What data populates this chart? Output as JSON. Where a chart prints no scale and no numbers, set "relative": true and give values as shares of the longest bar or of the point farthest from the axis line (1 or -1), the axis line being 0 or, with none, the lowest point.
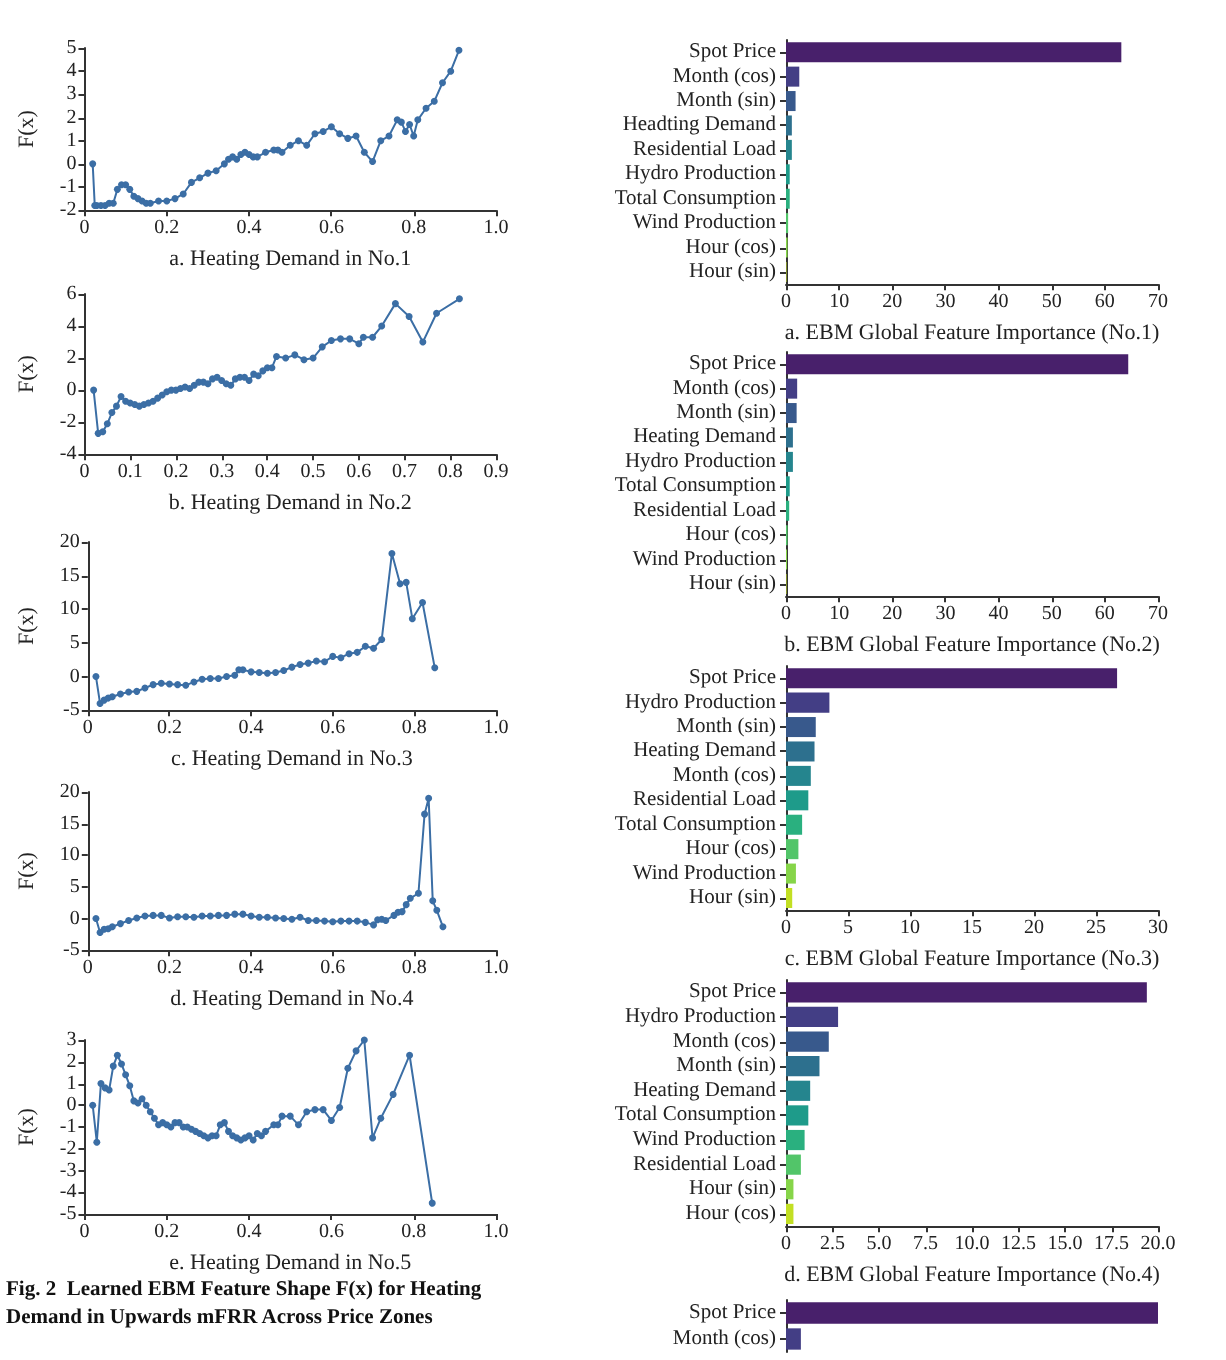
{
  "chart_data": [
    {
      "type": "line",
      "xlabel": "a. Heating Demand in No.1",
      "ylabel": "F(x)",
      "marker": "circle",
      "xlim": [
        0,
        1
      ],
      "ylim": [
        -2,
        5
      ],
      "xticks": [
        0,
        0.2,
        0.4,
        0.6,
        0.8,
        {
          "value": 1,
          "label": "1.0"
        }
      ],
      "yticks": [
        -2,
        -1,
        0,
        1,
        2,
        3,
        4,
        5
      ],
      "x": [
        0.02,
        0.025,
        0.03,
        0.04,
        0.05,
        0.06,
        0.07,
        0.08,
        0.09,
        0.1,
        0.11,
        0.12,
        0.13,
        0.14,
        0.15,
        0.16,
        0.18,
        0.2,
        0.22,
        0.24,
        0.26,
        0.28,
        0.3,
        0.32,
        0.34,
        0.35,
        0.36,
        0.37,
        0.38,
        0.39,
        0.4,
        0.41,
        0.42,
        0.44,
        0.46,
        0.47,
        0.48,
        0.5,
        0.52,
        0.54,
        0.56,
        0.58,
        0.6,
        0.62,
        0.64,
        0.66,
        0.68,
        0.7,
        0.72,
        0.74,
        0.76,
        0.77,
        0.78,
        0.79,
        0.8,
        0.81,
        0.83,
        0.85,
        0.87,
        0.89,
        0.91
      ],
      "series": [
        {
          "color": "#3b6ea5",
          "values": [
            0,
            -1.8,
            -1.8,
            -1.8,
            -1.8,
            -1.7,
            -1.7,
            -1.1,
            -0.9,
            -0.9,
            -1.1,
            -1.4,
            -1.5,
            -1.6,
            -1.7,
            -1.7,
            -1.6,
            -1.6,
            -1.5,
            -1.3,
            -0.8,
            -0.6,
            -0.4,
            -0.3,
            0,
            0.2,
            0.3,
            0.2,
            0.4,
            0.5,
            0.4,
            0.3,
            0.3,
            0.5,
            0.6,
            0.6,
            0.5,
            0.8,
            1,
            0.8,
            1.3,
            1.4,
            1.6,
            1.3,
            1.1,
            1.2,
            0.5,
            0.1,
            1,
            1.2,
            1.9,
            1.8,
            1.4,
            1.7,
            1.2,
            1.9,
            2.4,
            2.7,
            3.5,
            4,
            4.9
          ]
        }
      ]
    },
    {
      "type": "line",
      "xlabel": "b. Heating Demand in No.2",
      "ylabel": "F(x)",
      "marker": "circle",
      "xlim": [
        0,
        0.9
      ],
      "ylim": [
        -4,
        6
      ],
      "xticks": [
        0,
        0.1,
        0.2,
        0.3,
        0.4,
        0.5,
        0.6,
        0.7,
        0.8,
        0.9
      ],
      "yticks": [
        -4,
        -2,
        0,
        2,
        4,
        6
      ],
      "x": [
        0.02,
        0.03,
        0.04,
        0.05,
        0.06,
        0.07,
        0.08,
        0.09,
        0.1,
        0.11,
        0.12,
        0.13,
        0.14,
        0.15,
        0.16,
        0.17,
        0.18,
        0.19,
        0.2,
        0.21,
        0.22,
        0.23,
        0.24,
        0.25,
        0.26,
        0.27,
        0.28,
        0.29,
        0.3,
        0.31,
        0.32,
        0.33,
        0.34,
        0.35,
        0.36,
        0.37,
        0.38,
        0.39,
        0.4,
        0.41,
        0.42,
        0.44,
        0.46,
        0.48,
        0.5,
        0.52,
        0.54,
        0.56,
        0.58,
        0.6,
        0.61,
        0.63,
        0.65,
        0.68,
        0.71,
        0.74,
        0.77,
        0.82
      ],
      "series": [
        {
          "color": "#3b6ea5",
          "values": [
            0,
            -2.7,
            -2.6,
            -2.1,
            -1.4,
            -1,
            -0.4,
            -0.7,
            -0.8,
            -0.9,
            -1,
            -0.9,
            -0.8,
            -0.7,
            -0.5,
            -0.3,
            -0.1,
            0,
            0,
            0.1,
            0.2,
            0.1,
            0.3,
            0.5,
            0.5,
            0.4,
            0.7,
            0.8,
            0.6,
            0.4,
            0.3,
            0.7,
            0.8,
            0.8,
            0.6,
            1,
            0.9,
            1.2,
            1.4,
            1.4,
            2.1,
            2,
            2.2,
            1.9,
            2,
            2.7,
            3.1,
            3.2,
            3.2,
            2.9,
            3.3,
            3.3,
            4,
            5.4,
            4.6,
            3,
            4.8,
            5.7
          ]
        }
      ]
    },
    {
      "type": "line",
      "xlabel": "c. Heating Demand in No.3",
      "ylabel": "F(x)",
      "marker": "circle",
      "xlim": [
        0,
        1
      ],
      "ylim": [
        -5,
        20
      ],
      "xticks": [
        0,
        0.2,
        0.4,
        0.6,
        0.8,
        {
          "value": 1,
          "label": "1.0"
        }
      ],
      "yticks": [
        -5,
        0,
        5,
        10,
        15,
        20
      ],
      "x": [
        0.02,
        0.03,
        0.04,
        0.05,
        0.06,
        0.08,
        0.1,
        0.12,
        0.14,
        0.16,
        0.18,
        0.2,
        0.22,
        0.24,
        0.26,
        0.28,
        0.3,
        0.32,
        0.34,
        0.36,
        0.37,
        0.38,
        0.4,
        0.42,
        0.44,
        0.46,
        0.48,
        0.5,
        0.52,
        0.54,
        0.56,
        0.58,
        0.6,
        0.62,
        0.64,
        0.66,
        0.68,
        0.7,
        0.72,
        0.745,
        0.765,
        0.78,
        0.795,
        0.82,
        0.85
      ],
      "series": [
        {
          "color": "#3b6ea5",
          "values": [
            0,
            -4,
            -3.5,
            -3.2,
            -3,
            -2.6,
            -2.3,
            -2.2,
            -1.7,
            -1.2,
            -1,
            -1.1,
            -1.2,
            -1.3,
            -0.8,
            -0.4,
            -0.3,
            -0.3,
            0,
            0.2,
            1,
            1,
            0.7,
            0.6,
            0.5,
            0.6,
            0.9,
            1.4,
            1.8,
            2,
            2.3,
            2.2,
            3,
            2.8,
            3.4,
            3.6,
            4.5,
            4.2,
            5.5,
            18.3,
            13.8,
            14,
            8.6,
            11,
            1.3
          ]
        }
      ]
    },
    {
      "type": "line",
      "xlabel": "d. Heating Demand in No.4",
      "ylabel": "F(x)",
      "marker": "circle",
      "xlim": [
        0,
        1
      ],
      "ylim": [
        -5,
        20
      ],
      "xticks": [
        0,
        0.2,
        0.4,
        0.6,
        0.8,
        {
          "value": 1,
          "label": "1.0"
        }
      ],
      "yticks": [
        -5,
        0,
        5,
        10,
        15,
        20
      ],
      "x": [
        0.02,
        0.03,
        0.04,
        0.05,
        0.06,
        0.08,
        0.1,
        0.12,
        0.14,
        0.16,
        0.18,
        0.2,
        0.22,
        0.24,
        0.26,
        0.28,
        0.3,
        0.32,
        0.34,
        0.36,
        0.38,
        0.4,
        0.42,
        0.44,
        0.46,
        0.48,
        0.5,
        0.52,
        0.54,
        0.56,
        0.58,
        0.6,
        0.62,
        0.64,
        0.66,
        0.68,
        0.7,
        0.71,
        0.72,
        0.73,
        0.75,
        0.76,
        0.77,
        0.78,
        0.79,
        0.81,
        0.825,
        0.835,
        0.845,
        0.855,
        0.87
      ],
      "series": [
        {
          "color": "#3b6ea5",
          "values": [
            0,
            -2.2,
            -1.7,
            -1.6,
            -1.3,
            -0.8,
            -0.3,
            0.1,
            0.4,
            0.5,
            0.5,
            0.1,
            0.3,
            0.3,
            0.2,
            0.4,
            0.4,
            0.5,
            0.5,
            0.7,
            0.7,
            0.4,
            0.2,
            0.2,
            0.1,
            0,
            -0.1,
            0.2,
            -0.3,
            -0.3,
            -0.4,
            -0.5,
            -0.4,
            -0.4,
            -0.4,
            -0.6,
            -1,
            -0.2,
            -0.1,
            -0.3,
            0.5,
            1,
            1.1,
            2.2,
            3.2,
            4,
            16.5,
            19,
            2.8,
            1.3,
            -1.3
          ]
        }
      ]
    },
    {
      "type": "line",
      "xlabel": "e. Heating Demand in No.5",
      "ylabel": "F(x)",
      "marker": "circle",
      "xlim": [
        0,
        1
      ],
      "ylim": [
        -5,
        3
      ],
      "xticks": [
        0,
        0.2,
        0.4,
        0.6,
        0.8,
        {
          "value": 1,
          "label": "1.0"
        }
      ],
      "yticks": [
        -5,
        -4,
        -3,
        -2,
        -1,
        0,
        1,
        2,
        3
      ],
      "annotations": [
        "Fig. 2  Learned EBM Feature Shape F(x) for Heating Demand in Upwards mFRR Across Price Zones"
      ],
      "x": [
        0.02,
        0.03,
        0.04,
        0.05,
        0.06,
        0.07,
        0.08,
        0.09,
        0.1,
        0.11,
        0.12,
        0.13,
        0.14,
        0.15,
        0.16,
        0.17,
        0.18,
        0.19,
        0.2,
        0.21,
        0.22,
        0.23,
        0.24,
        0.25,
        0.26,
        0.27,
        0.28,
        0.29,
        0.3,
        0.31,
        0.32,
        0.33,
        0.34,
        0.35,
        0.36,
        0.37,
        0.38,
        0.39,
        0.4,
        0.41,
        0.42,
        0.43,
        0.44,
        0.46,
        0.47,
        0.48,
        0.5,
        0.52,
        0.54,
        0.56,
        0.58,
        0.6,
        0.62,
        0.64,
        0.66,
        0.68,
        0.7,
        0.72,
        0.75,
        0.79,
        0.845
      ],
      "series": [
        {
          "color": "#3b6ea5",
          "values": [
            0,
            -1.7,
            1,
            0.8,
            0.7,
            1.8,
            2.3,
            1.9,
            1.4,
            0.9,
            0.2,
            0.1,
            0.3,
            0,
            -0.3,
            -0.6,
            -0.9,
            -0.8,
            -0.9,
            -1,
            -0.8,
            -0.8,
            -1,
            -1,
            -1.1,
            -1.2,
            -1.3,
            -1.4,
            -1.5,
            -1.4,
            -1.4,
            -0.9,
            -0.8,
            -1.2,
            -1.4,
            -1.5,
            -1.6,
            -1.5,
            -1.4,
            -1.6,
            -1.3,
            -1.4,
            -1.2,
            -0.9,
            -0.9,
            -0.5,
            -0.5,
            -0.9,
            -0.3,
            -0.2,
            -0.2,
            -0.7,
            -0.1,
            1.7,
            2.5,
            3,
            -1.5,
            -0.6,
            0.5,
            2.3,
            -4.5
          ]
        }
      ]
    },
    {
      "type": "bar",
      "orientation": "horizontal",
      "xlabel": "a. EBM Global Feature Importance (No.1)",
      "xlim": [
        0,
        70
      ],
      "xticks": [
        0,
        10,
        20,
        30,
        40,
        50,
        60,
        70
      ],
      "categories": [
        "Spot Price",
        "Month (cos)",
        "Month (sin)",
        "Headting Demand",
        "Residential Load",
        "Hydro Production",
        "Total Consumption",
        "Wind Production",
        "Hour (cos)",
        "Hour (sin)"
      ],
      "values": [
        63.1,
        2.5,
        1.8,
        1.1,
        1.1,
        0.7,
        0.7,
        0.4,
        0.3,
        0.1
      ],
      "colors": [
        "#48206b",
        "#433e85",
        "#38598c",
        "#2d708e",
        "#25858e",
        "#1e9b8a",
        "#2ab07f",
        "#52c569",
        "#86d549",
        "#c2df23"
      ]
    },
    {
      "type": "bar",
      "orientation": "horizontal",
      "xlabel": "b. EBM Global Feature Importance (No.2)",
      "xlim": [
        0,
        70
      ],
      "xticks": [
        0,
        10,
        20,
        30,
        40,
        50,
        60,
        70
      ],
      "categories": [
        "Spot Price",
        "Month (cos)",
        "Month (sin)",
        "Heating Demand",
        "Hydro Production",
        "Total Consumption",
        "Residential Load",
        "Hour (cos)",
        "Wind Production",
        "Hour (sin)"
      ],
      "values": [
        64.4,
        2.1,
        2,
        1.3,
        1.3,
        0.7,
        0.6,
        0.3,
        0.2,
        0.1
      ],
      "colors": [
        "#48206b",
        "#433e85",
        "#38598c",
        "#2d708e",
        "#25858e",
        "#1e9b8a",
        "#2ab07f",
        "#52c569",
        "#86d549",
        "#c2df23"
      ]
    },
    {
      "type": "bar",
      "orientation": "horizontal",
      "xlabel": "c. EBM Global Feature Importance (No.3)",
      "xlim": [
        0,
        30
      ],
      "xticks": [
        0,
        5,
        10,
        15,
        20,
        25,
        30
      ],
      "categories": [
        "Spot Price",
        "Hydro Production",
        "Month (sin)",
        "Heating Demand",
        "Month (cos)",
        "Residential Load",
        "Total Consumption",
        "Hour (cos)",
        "Wind Production",
        "Hour (sin)"
      ],
      "values": [
        26.7,
        3.5,
        2.4,
        2.3,
        2,
        1.8,
        1.3,
        1,
        0.8,
        0.5
      ],
      "colors": [
        "#48206b",
        "#433e85",
        "#38598c",
        "#2d708e",
        "#25858e",
        "#1e9b8a",
        "#2ab07f",
        "#52c569",
        "#86d549",
        "#c2df23"
      ]
    },
    {
      "type": "bar",
      "orientation": "horizontal",
      "xlabel": "d. EBM Global Feature Importance (No.4)",
      "xlim": [
        0,
        20
      ],
      "xticks": [
        0,
        2.5,
        {
          "value": 5,
          "label": "5.0"
        },
        7.5,
        {
          "value": 10,
          "label": "10.0"
        },
        12.5,
        {
          "value": 15,
          "label": "15.0"
        },
        17.5,
        {
          "value": 20,
          "label": "20.0"
        }
      ],
      "categories": [
        "Spot Price",
        "Hydro Production",
        "Month (cos)",
        "Month (sin)",
        "Heating Demand",
        "Total Consumption",
        "Wind Production",
        "Residential Load",
        "Hour (sin)",
        "Hour (cos)"
      ],
      "values": [
        19.4,
        2.8,
        2.3,
        1.8,
        1.3,
        1.2,
        1,
        0.8,
        0.4,
        0.4
      ],
      "colors": [
        "#48206b",
        "#433e85",
        "#38598c",
        "#2d708e",
        "#25858e",
        "#1e9b8a",
        "#2ab07f",
        "#52c569",
        "#86d549",
        "#c2df23"
      ]
    },
    {
      "type": "bar",
      "orientation": "horizontal",
      "relative": true,
      "categories": [
        "Spot Price",
        "Month (cos)"
      ],
      "values": [
        1,
        0.04
      ],
      "colors": [
        "#48206b",
        "#433e85"
      ]
    }
  ]
}
